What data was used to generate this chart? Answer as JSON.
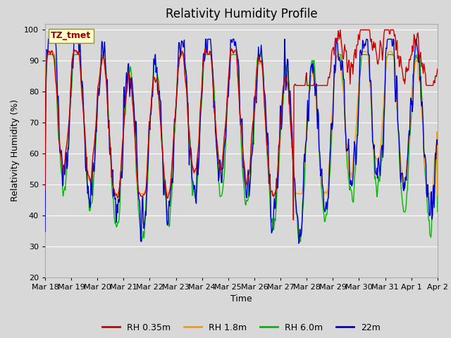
{
  "title": "Relativity Humidity Profile",
  "xlabel": "Time",
  "ylabel": "Relativity Humidity (%)",
  "ylim": [
    20,
    102
  ],
  "yticks": [
    20,
    30,
    40,
    50,
    60,
    70,
    80,
    90,
    100
  ],
  "colors": {
    "RH 0.35m": "#cc0000",
    "RH 1.8m": "#ff9900",
    "RH 6.0m": "#00bb00",
    "22m": "#0000cc"
  },
  "legend_labels": [
    "RH 0.35m",
    "RH 1.8m",
    "RH 6.0m",
    "22m"
  ],
  "annotation_text": "TZ_tmet",
  "annotation_color": "#990000",
  "annotation_bg": "#ffffcc",
  "annotation_edge": "#999900",
  "background_color": "#d8d8d8",
  "plot_bg": "#d8d8d8",
  "grid_color": "#ffffff",
  "x_labels": [
    "Mar 18",
    "Mar 19",
    "Mar 20",
    "Mar 21",
    "Mar 22",
    "Mar 23",
    "Mar 24",
    "Mar 25",
    "Mar 26",
    "Mar 27",
    "Mar 28",
    "Mar 29",
    "Mar 30",
    "Mar 31",
    "Apr 1",
    "Apr 2"
  ],
  "title_fontsize": 12,
  "axis_fontsize": 8,
  "label_fontsize": 9
}
